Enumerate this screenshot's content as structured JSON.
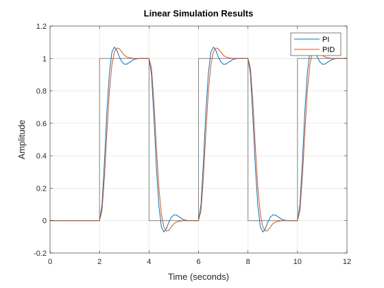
{
  "chart_data": {
    "type": "line",
    "title": "Linear Simulation Results",
    "xlabel": "Time (seconds)",
    "ylabel": "Amplitude",
    "xlim": [
      0,
      12
    ],
    "ylim": [
      -0.2,
      1.2
    ],
    "xticks": [
      0,
      2,
      4,
      6,
      8,
      10,
      12
    ],
    "xtick_labels": [
      "0",
      "2",
      "4",
      "6",
      "8",
      "10",
      "12"
    ],
    "yticks": [
      -0.2,
      0,
      0.2,
      0.4,
      0.6,
      0.8,
      1,
      1.2
    ],
    "ytick_labels": [
      "-0.2",
      "0",
      "0.2",
      "0.4",
      "0.6",
      "0.8",
      "1",
      "1.2"
    ],
    "grid": true,
    "legend_position": "top-right",
    "series": [
      {
        "color": "#808080",
        "x": [
          0,
          2,
          2,
          4,
          4,
          6,
          6,
          8,
          8,
          10,
          10,
          12
        ],
        "y": [
          0,
          0,
          1,
          1,
          0,
          0,
          1,
          1,
          0,
          0,
          1,
          1
        ]
      },
      {
        "name": "PI",
        "color": "#0072BD",
        "x": [
          0,
          2,
          2.1,
          2.2,
          2.3,
          2.4,
          2.5,
          2.6,
          2.7,
          2.8,
          2.9,
          3,
          3.1,
          3.2,
          3.4,
          3.6,
          3.8,
          4,
          4.1,
          4.2,
          4.3,
          4.4,
          4.5,
          4.6,
          4.7,
          4.8,
          4.9,
          5,
          5.1,
          5.2,
          5.4,
          5.6,
          5.8,
          6,
          6.1,
          6.2,
          6.3,
          6.4,
          6.5,
          6.6,
          6.7,
          6.8,
          6.9,
          7,
          7.1,
          7.2,
          7.4,
          7.6,
          7.8,
          8,
          8.1,
          8.2,
          8.3,
          8.4,
          8.5,
          8.6,
          8.7,
          8.8,
          8.9,
          9,
          9.1,
          9.2,
          9.4,
          9.6,
          9.8,
          10,
          10.1,
          10.2,
          10.3,
          10.4,
          10.5,
          10.6,
          10.7,
          10.8,
          10.9,
          11,
          11.1,
          11.2,
          11.4,
          11.6,
          11.8,
          12
        ],
        "y": [
          0,
          0,
          0.1,
          0.37,
          0.68,
          0.91,
          1.04,
          1.07,
          1.05,
          1.01,
          0.98,
          0.965,
          0.965,
          0.975,
          0.995,
          1.0,
          1.0,
          1.0,
          0.9,
          0.63,
          0.32,
          0.09,
          -0.04,
          -0.07,
          -0.05,
          -0.01,
          0.02,
          0.035,
          0.035,
          0.025,
          0.005,
          0.0,
          0.0,
          0.0,
          0.1,
          0.37,
          0.68,
          0.91,
          1.04,
          1.07,
          1.05,
          1.01,
          0.98,
          0.965,
          0.965,
          0.975,
          0.995,
          1.0,
          1.0,
          1.0,
          0.9,
          0.63,
          0.32,
          0.09,
          -0.04,
          -0.07,
          -0.05,
          -0.01,
          0.02,
          0.035,
          0.035,
          0.025,
          0.005,
          0.0,
          0.0,
          0.0,
          0.1,
          0.37,
          0.68,
          0.91,
          1.04,
          1.07,
          1.05,
          1.01,
          0.98,
          0.965,
          0.965,
          0.975,
          0.995,
          1.0,
          1.0,
          1.0
        ]
      },
      {
        "name": "PID",
        "color": "#D95319",
        "x": [
          0,
          2,
          2.1,
          2.2,
          2.3,
          2.4,
          2.5,
          2.6,
          2.7,
          2.8,
          2.9,
          3,
          3.1,
          3.2,
          3.4,
          3.6,
          3.8,
          4,
          4.1,
          4.2,
          4.3,
          4.4,
          4.5,
          4.6,
          4.7,
          4.8,
          4.9,
          5,
          5.1,
          5.2,
          5.4,
          5.6,
          5.8,
          6,
          6.1,
          6.2,
          6.3,
          6.4,
          6.5,
          6.6,
          6.7,
          6.8,
          6.9,
          7,
          7.1,
          7.2,
          7.4,
          7.6,
          7.8,
          8,
          8.1,
          8.2,
          8.3,
          8.4,
          8.5,
          8.6,
          8.7,
          8.8,
          8.9,
          9,
          9.1,
          9.2,
          9.4,
          9.6,
          9.8,
          10,
          10.1,
          10.2,
          10.3,
          10.4,
          10.5,
          10.6,
          10.7,
          10.8,
          10.9,
          11,
          11.1,
          11.2,
          11.4,
          11.6,
          11.8,
          12
        ],
        "y": [
          0,
          0,
          0.06,
          0.27,
          0.55,
          0.8,
          0.96,
          1.04,
          1.065,
          1.06,
          1.04,
          1.02,
          1.01,
          1.005,
          1.0,
          1.0,
          1.0,
          1.0,
          0.94,
          0.73,
          0.45,
          0.2,
          0.04,
          -0.04,
          -0.065,
          -0.06,
          -0.04,
          -0.02,
          -0.01,
          -0.005,
          0.0,
          0.0,
          0.0,
          0.0,
          0.06,
          0.27,
          0.55,
          0.8,
          0.96,
          1.04,
          1.065,
          1.06,
          1.04,
          1.02,
          1.01,
          1.005,
          1.0,
          1.0,
          1.0,
          1.0,
          0.94,
          0.73,
          0.45,
          0.2,
          0.04,
          -0.04,
          -0.065,
          -0.06,
          -0.04,
          -0.02,
          -0.01,
          -0.005,
          0.0,
          0.0,
          0.0,
          0.0,
          0.06,
          0.27,
          0.55,
          0.8,
          0.96,
          1.04,
          1.065,
          1.06,
          1.04,
          1.02,
          1.01,
          1.005,
          1.0,
          1.0,
          1.0,
          1.0
        ]
      }
    ]
  }
}
